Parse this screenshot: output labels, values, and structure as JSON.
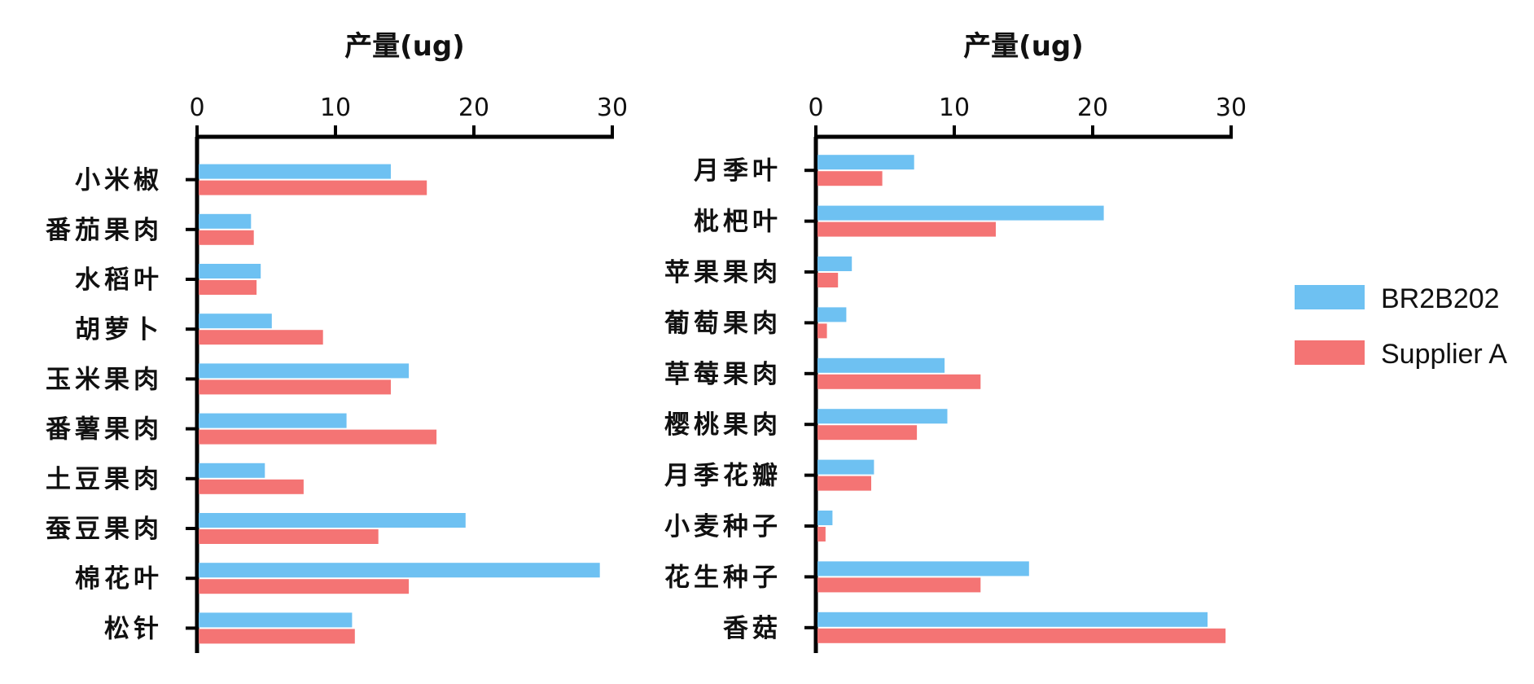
{
  "colors": {
    "series_1": "#6ec1f2",
    "series_2": "#f47474",
    "axis": "#000000"
  },
  "legend": {
    "placement": "right",
    "items": [
      "BR2B202",
      "Supplier A"
    ]
  },
  "chart_data": [
    {
      "type": "bar",
      "orientation": "horizontal",
      "title": "",
      "xlabel": "产量(ug)",
      "ylabel": "",
      "xlim": [
        0,
        30
      ],
      "xticks": [
        0,
        10,
        20,
        30
      ],
      "x_axis_position": "top",
      "categories": [
        "小米椒",
        "番茄果肉",
        "水稻叶",
        "胡萝卜",
        "玉米果肉",
        "番薯果肉",
        "土豆果肉",
        "蚕豆果肉",
        "棉花叶",
        "松针"
      ],
      "series": [
        {
          "name": "BR2B202",
          "values": [
            14.0,
            3.9,
            4.6,
            5.4,
            15.3,
            10.8,
            4.9,
            19.4,
            29.1,
            11.2
          ]
        },
        {
          "name": "Supplier A",
          "values": [
            16.6,
            4.1,
            4.3,
            9.1,
            14.0,
            17.3,
            7.7,
            13.1,
            15.3,
            11.4
          ]
        }
      ]
    },
    {
      "type": "bar",
      "orientation": "horizontal",
      "title": "",
      "xlabel": "产量(ug)",
      "ylabel": "",
      "xlim": [
        0,
        30
      ],
      "xticks": [
        0,
        10,
        20,
        30
      ],
      "x_axis_position": "top",
      "categories": [
        "月季叶",
        "枇杷叶",
        "苹果果肉",
        "葡萄果肉",
        "草莓果肉",
        "樱桃果肉",
        "月季花瓣",
        "小麦种子",
        "花生种子",
        "香菇"
      ],
      "series": [
        {
          "name": "BR2B202",
          "values": [
            7.1,
            20.8,
            2.6,
            2.2,
            9.3,
            9.5,
            4.2,
            1.2,
            15.4,
            28.3
          ]
        },
        {
          "name": "Supplier A",
          "values": [
            4.8,
            13.0,
            1.6,
            0.8,
            11.9,
            7.3,
            4.0,
            0.7,
            11.9,
            29.6
          ]
        }
      ]
    }
  ]
}
